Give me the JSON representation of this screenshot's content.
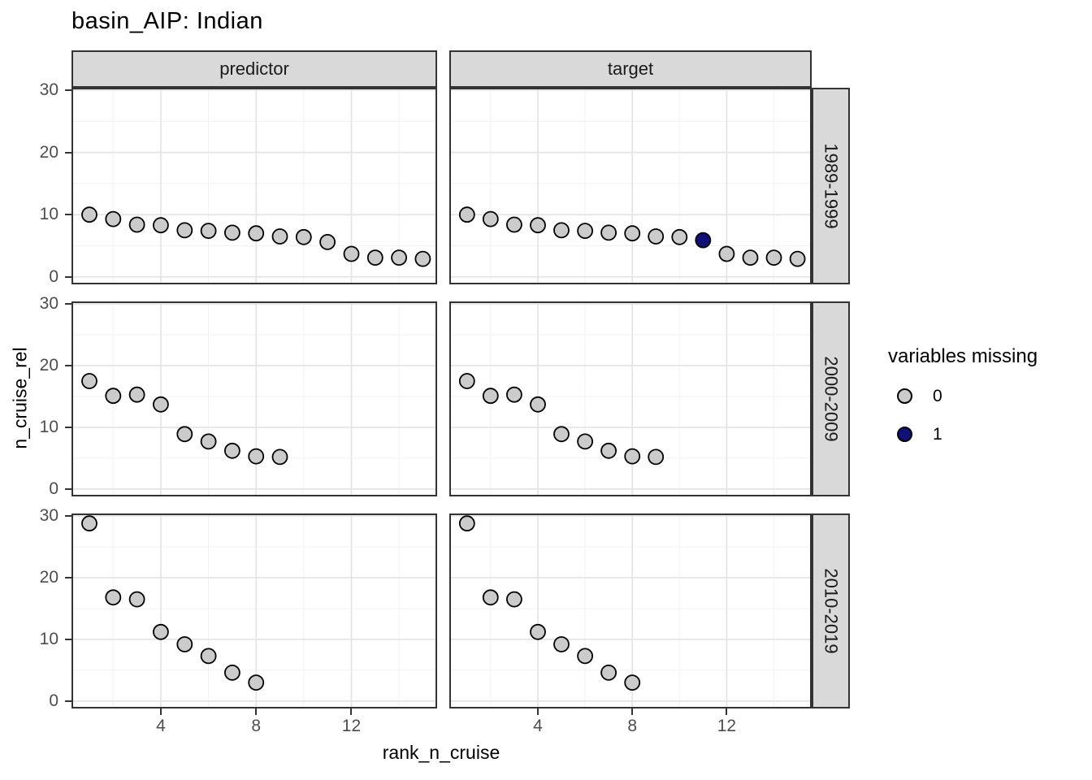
{
  "chart_data": {
    "type": "scatter",
    "title": "basin_AIP: Indian",
    "xlabel": "rank_n_cruise",
    "ylabel": "n_cruise_rel",
    "facet_columns": [
      "predictor",
      "target"
    ],
    "facet_rows": [
      "1989-1999",
      "2000-2009",
      "2010-2019"
    ],
    "x_axis": {
      "title": "rank_n_cruise",
      "ticks": [
        4,
        8,
        12
      ],
      "minor_ticks": [
        2,
        6,
        10,
        14
      ],
      "lim": [
        0.25,
        15.6
      ],
      "grid": true
    },
    "y_axis": {
      "title": "n_cruise_rel",
      "ticks": [
        0,
        10,
        20,
        30
      ],
      "minor_ticks": [
        5,
        15,
        25
      ],
      "lim": [
        -1.2,
        30.4
      ],
      "grid": true
    },
    "legend": {
      "title": "variables missing",
      "position": "right",
      "items": [
        {
          "label": "0",
          "color": "#cbcbcb"
        },
        {
          "label": "1",
          "color": "#101078"
        }
      ]
    },
    "theme": {
      "strip_bg": "#d9d9d9",
      "panel_border": "#333333",
      "grid_major": "#e4e4e4",
      "grid_minor": "#f1f1f1",
      "tick_color": "#333333",
      "tick_label_color": "#4d4d4d",
      "point_stroke": "#000000"
    },
    "panels": [
      {
        "facet_column": "predictor",
        "facet_row": "1989-1999",
        "x": [
          1,
          2,
          3,
          4,
          5,
          6,
          7,
          8,
          9,
          10,
          11,
          12,
          13,
          14,
          15
        ],
        "y": [
          10.0,
          9.3,
          8.4,
          8.3,
          7.5,
          7.4,
          7.1,
          7.0,
          6.5,
          6.4,
          5.6,
          3.7,
          3.1,
          3.1,
          2.9
        ],
        "missing": [
          0,
          0,
          0,
          0,
          0,
          0,
          0,
          0,
          0,
          0,
          0,
          0,
          0,
          0,
          0
        ]
      },
      {
        "facet_column": "target",
        "facet_row": "1989-1999",
        "x": [
          1,
          2,
          3,
          4,
          5,
          6,
          7,
          8,
          9,
          10,
          11,
          12,
          13,
          14,
          15
        ],
        "y": [
          10.0,
          9.3,
          8.4,
          8.3,
          7.5,
          7.4,
          7.1,
          7.0,
          6.5,
          6.4,
          5.9,
          3.7,
          3.1,
          3.1,
          2.9
        ],
        "missing": [
          0,
          0,
          0,
          0,
          0,
          0,
          0,
          0,
          0,
          0,
          1,
          0,
          0,
          0,
          0
        ]
      },
      {
        "facet_column": "predictor",
        "facet_row": "2000-2009",
        "x": [
          1,
          2,
          3,
          4,
          5,
          6,
          7,
          8,
          9
        ],
        "y": [
          17.5,
          15.1,
          15.3,
          13.7,
          8.9,
          7.7,
          6.2,
          5.3,
          5.2
        ],
        "missing": [
          0,
          0,
          0,
          0,
          0,
          0,
          0,
          0,
          0
        ]
      },
      {
        "facet_column": "target",
        "facet_row": "2000-2009",
        "x": [
          1,
          2,
          3,
          4,
          5,
          6,
          7,
          8,
          9
        ],
        "y": [
          17.5,
          15.1,
          15.3,
          13.7,
          8.9,
          7.7,
          6.2,
          5.3,
          5.2
        ],
        "missing": [
          0,
          0,
          0,
          0,
          0,
          0,
          0,
          0,
          0
        ]
      },
      {
        "facet_column": "predictor",
        "facet_row": "2010-2019",
        "x": [
          1,
          2,
          3,
          4,
          5,
          6,
          7,
          8
        ],
        "y": [
          28.8,
          16.8,
          16.5,
          11.2,
          9.2,
          7.3,
          4.6,
          3.0
        ],
        "missing": [
          0,
          0,
          0,
          0,
          0,
          0,
          0,
          0
        ]
      },
      {
        "facet_column": "target",
        "facet_row": "2010-2019",
        "x": [
          1,
          2,
          3,
          4,
          5,
          6,
          7,
          8
        ],
        "y": [
          28.8,
          16.8,
          16.5,
          11.2,
          9.2,
          7.3,
          4.6,
          3.0
        ],
        "missing": [
          0,
          0,
          0,
          0,
          0,
          0,
          0,
          0
        ]
      }
    ]
  }
}
